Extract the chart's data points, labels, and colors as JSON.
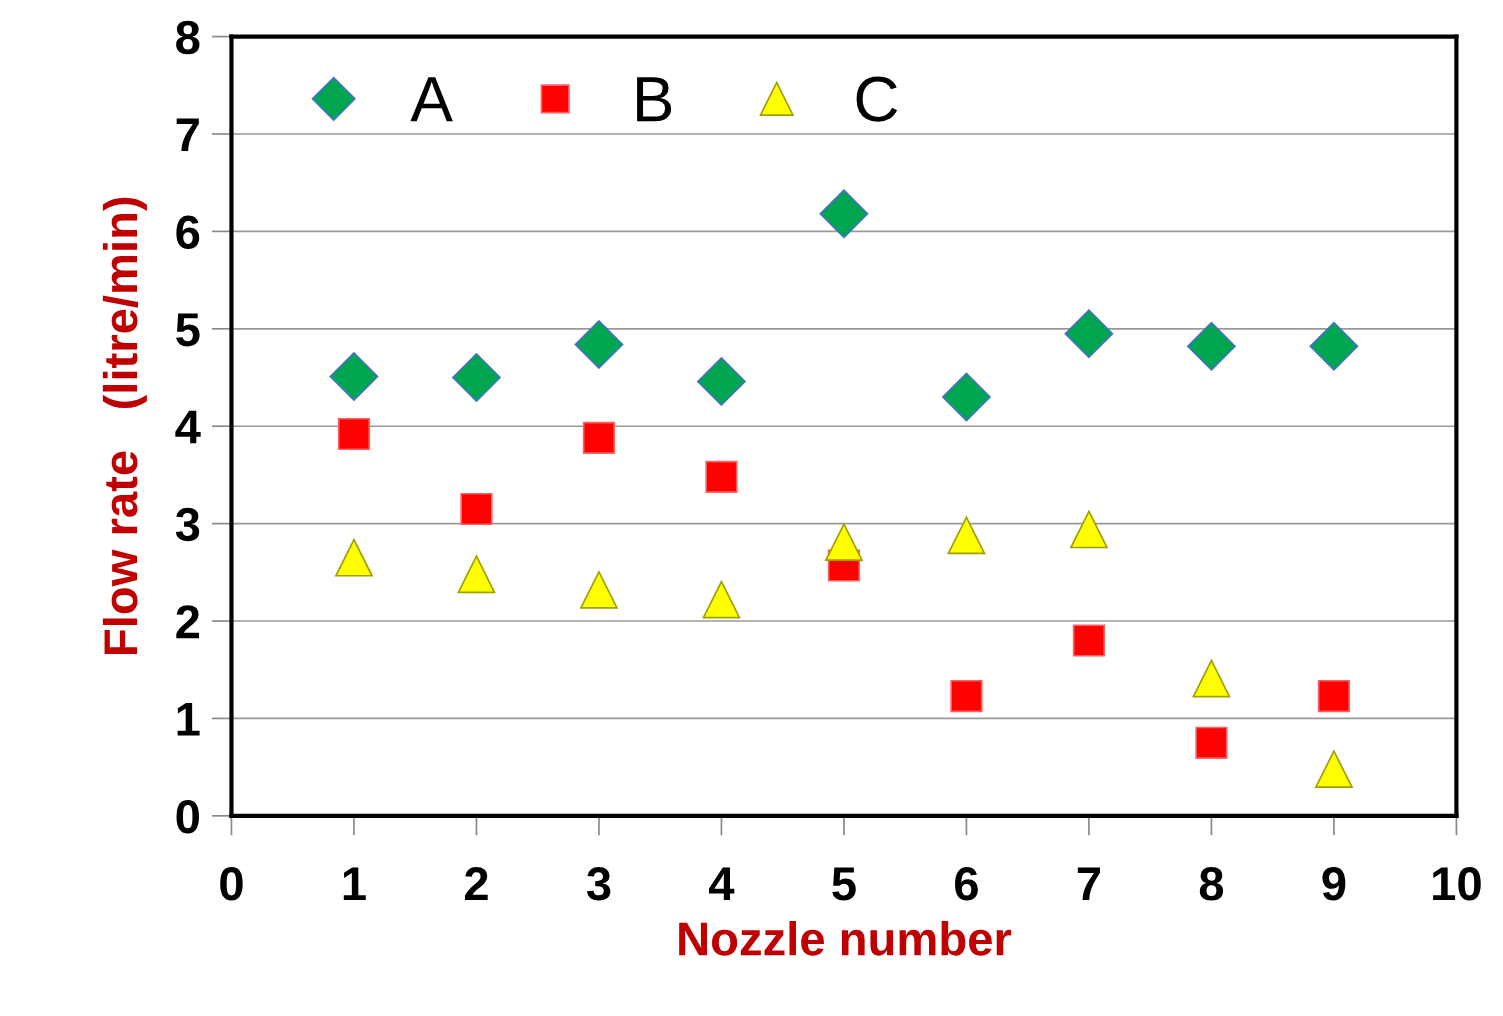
{
  "chart_data": {
    "type": "scatter",
    "xlabel": "Nozzle number",
    "ylabel": "Flow rate   (litre/min)",
    "x": [
      1,
      2,
      3,
      4,
      5,
      6,
      7,
      8,
      9
    ],
    "series": [
      {
        "name": "A",
        "color": "#00a550",
        "marker": "diamond",
        "values": [
          4.51,
          4.5,
          4.84,
          4.46,
          6.18,
          4.3,
          4.95,
          4.82,
          4.82
        ]
      },
      {
        "name": "B",
        "color": "#ff0000",
        "marker": "square",
        "values": [
          3.92,
          3.15,
          3.88,
          3.48,
          2.57,
          1.23,
          1.8,
          0.75,
          1.23
        ]
      },
      {
        "name": "C",
        "color": "#ffff00",
        "marker": "triangle",
        "values": [
          2.65,
          2.48,
          2.32,
          2.22,
          2.81,
          2.88,
          2.94,
          1.41,
          0.48
        ]
      }
    ],
    "xlim": [
      0,
      10
    ],
    "xticks": [
      0,
      1,
      2,
      3,
      4,
      5,
      6,
      7,
      8,
      9,
      10
    ],
    "ylim": [
      0,
      8
    ],
    "yticks": [
      0,
      1,
      2,
      3,
      4,
      5,
      6,
      7,
      8
    ],
    "grid": "y",
    "legend": "top left"
  }
}
